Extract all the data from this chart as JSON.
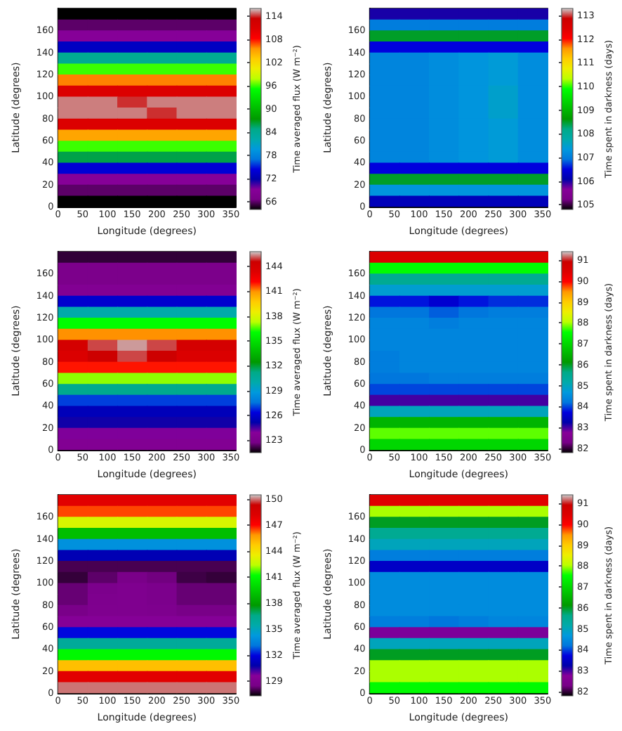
{
  "chart_data": [
    {
      "type": "heatmap",
      "xlabel": "Longitude (degrees)",
      "ylabel": "Latitude (degrees)",
      "clabel": "Time averaged flux (W m⁻²)",
      "x": [
        30,
        90,
        150,
        210,
        270,
        330
      ],
      "xlim": [
        0,
        360
      ],
      "xticks": [
        0,
        50,
        100,
        150,
        200,
        250,
        300,
        350
      ],
      "ylim": [
        0,
        180
      ],
      "yticks": [
        0,
        20,
        40,
        60,
        80,
        100,
        120,
        140,
        160
      ],
      "clim": [
        64,
        116
      ],
      "cticks": [
        66,
        72,
        78,
        84,
        90,
        96,
        102,
        108,
        114
      ],
      "cells": [
        [
          64,
          64,
          64,
          64,
          64,
          64
        ],
        [
          66,
          66,
          66,
          66,
          66,
          66
        ],
        [
          69,
          69,
          69,
          69,
          69,
          69
        ],
        [
          73,
          73,
          73,
          73,
          73,
          73
        ],
        [
          84,
          84,
          84,
          84,
          84,
          84
        ],
        [
          96,
          96,
          96,
          96,
          96,
          96
        ],
        [
          106,
          106,
          106,
          106,
          106,
          106
        ],
        [
          111,
          111,
          111,
          111,
          111,
          111
        ],
        [
          115,
          115,
          114,
          115,
          115,
          115
        ],
        [
          115,
          115,
          115,
          114,
          115,
          115
        ],
        [
          111,
          111,
          111,
          111,
          111,
          111
        ],
        [
          105,
          105,
          105,
          105,
          105,
          105
        ],
        [
          96,
          96,
          96,
          96,
          96,
          96
        ],
        [
          86,
          86,
          86,
          86,
          86,
          86
        ],
        [
          74,
          74,
          74,
          74,
          74,
          74
        ],
        [
          69,
          69,
          69,
          69,
          69,
          69
        ],
        [
          66,
          66,
          66,
          66,
          66,
          66
        ],
        [
          64,
          64,
          64,
          64,
          64,
          64
        ]
      ]
    },
    {
      "type": "heatmap",
      "xlabel": "Longitude (degrees)",
      "ylabel": "Latitude (degrees)",
      "clabel": "Time spent in darkness (days)",
      "x": [
        30,
        90,
        150,
        210,
        270,
        330
      ],
      "xlim": [
        0,
        360
      ],
      "xticks": [
        0,
        50,
        100,
        150,
        200,
        250,
        300,
        350
      ],
      "ylim": [
        0,
        180
      ],
      "yticks": [
        0,
        20,
        40,
        60,
        80,
        100,
        120,
        140,
        160
      ],
      "clim": [
        104.8,
        113.3
      ],
      "cticks": [
        105,
        106,
        107,
        108,
        109,
        110,
        111,
        112,
        113
      ],
      "cells": [
        [
          106,
          106,
          106,
          106,
          106,
          106
        ],
        [
          107,
          107,
          107,
          107,
          107,
          107
        ],
        [
          108.5,
          108.5,
          108.5,
          108.5,
          108.5,
          108.5
        ],
        [
          106.5,
          106.5,
          106.5,
          106.5,
          106.5,
          106.5
        ],
        [
          107.1,
          107.1,
          107.2,
          107.3,
          107.4,
          107.2
        ],
        [
          107.1,
          107.1,
          107.2,
          107.3,
          107.4,
          107.2
        ],
        [
          107.1,
          107.1,
          107.2,
          107.3,
          107.4,
          107.2
        ],
        [
          107.1,
          107.1,
          107.2,
          107.3,
          107.5,
          107.2
        ],
        [
          107.1,
          107.1,
          107.2,
          107.3,
          107.5,
          107.2
        ],
        [
          107.1,
          107.1,
          107.2,
          107.3,
          107.5,
          107.2
        ],
        [
          107.1,
          107.1,
          107.2,
          107.3,
          107.4,
          107.2
        ],
        [
          107.1,
          107.1,
          107.2,
          107.3,
          107.4,
          107.2
        ],
        [
          107.1,
          107.1,
          107.2,
          107.3,
          107.4,
          107.2
        ],
        [
          107.1,
          107.1,
          107.2,
          107.3,
          107.4,
          107.2
        ],
        [
          106.5,
          106.5,
          106.5,
          106.5,
          106.5,
          106.5
        ],
        [
          108.5,
          108.5,
          108.5,
          108.5,
          108.5,
          108.5
        ],
        [
          107.3,
          107.3,
          107.3,
          107.3,
          107.3,
          107.3
        ],
        [
          106.2,
          106.2,
          106.2,
          106.2,
          106.2,
          106.2
        ]
      ]
    },
    {
      "type": "heatmap",
      "xlabel": "Longitude (degrees)",
      "ylabel": "Latitude (degrees)",
      "clabel": "Time averaged flux (W m⁻²)",
      "x": [
        30,
        90,
        150,
        210,
        270,
        330
      ],
      "xlim": [
        0,
        360
      ],
      "xticks": [
        0,
        50,
        100,
        150,
        200,
        250,
        300,
        350
      ],
      "ylim": [
        0,
        180
      ],
      "yticks": [
        0,
        20,
        40,
        60,
        80,
        100,
        120,
        140,
        160
      ],
      "clim": [
        121.5,
        145.8
      ],
      "cticks": [
        123,
        126,
        129,
        132,
        135,
        138,
        141,
        144
      ],
      "cells": [
        [
          122,
          122,
          122,
          122,
          122,
          122
        ],
        [
          123,
          123,
          123,
          123,
          123,
          123
        ],
        [
          123,
          123,
          123,
          123,
          123,
          123
        ],
        [
          123.5,
          123.5,
          123.5,
          123.5,
          123.5,
          123.5
        ],
        [
          126,
          126,
          126,
          126,
          126,
          126
        ],
        [
          130,
          130,
          130,
          130,
          130,
          130
        ],
        [
          136,
          136,
          136,
          136,
          136,
          136
        ],
        [
          141,
          141,
          141,
          141,
          141,
          141
        ],
        [
          144,
          145,
          145.5,
          145,
          144,
          144
        ],
        [
          143.5,
          144.5,
          145,
          144.5,
          143.5,
          143.5
        ],
        [
          142,
          142,
          142,
          142,
          142,
          142
        ],
        [
          137,
          137,
          137,
          137,
          137,
          137
        ],
        [
          131,
          131,
          131,
          131,
          131,
          131
        ],
        [
          127,
          127,
          127,
          127,
          127,
          127
        ],
        [
          125.5,
          125.5,
          125.5,
          125.5,
          125.5,
          125.5
        ],
        [
          125,
          125,
          125,
          125,
          125,
          125
        ],
        [
          124,
          124,
          124,
          124,
          124,
          124
        ],
        [
          123.5,
          123.5,
          123.5,
          123.5,
          123.5,
          123.5
        ]
      ]
    },
    {
      "type": "heatmap",
      "xlabel": "Longitude (degrees)",
      "ylabel": "Latitude (degrees)",
      "clabel": "Time spent in darkness (days)",
      "x": [
        30,
        90,
        150,
        210,
        270,
        330
      ],
      "xlim": [
        0,
        360
      ],
      "xticks": [
        0,
        50,
        100,
        150,
        200,
        250,
        300,
        350
      ],
      "ylim": [
        0,
        180
      ],
      "yticks": [
        0,
        20,
        40,
        60,
        80,
        100,
        120,
        140,
        160
      ],
      "clim": [
        81.8,
        91.4
      ],
      "cticks": [
        82,
        83,
        84,
        85,
        86,
        87,
        88,
        89,
        90,
        91
      ],
      "cells": [
        [
          90.5,
          90.5,
          90.5,
          90.5,
          90.5,
          90.5
        ],
        [
          87.5,
          87.5,
          87.5,
          87.5,
          87.5,
          87.5
        ],
        [
          85.5,
          85.5,
          85.5,
          85.5,
          85.5,
          85.5
        ],
        [
          84.8,
          84.8,
          84.8,
          84.8,
          84.8,
          84.8
        ],
        [
          83.8,
          83.8,
          83.6,
          83.8,
          83.9,
          83.9
        ],
        [
          84.2,
          84.2,
          84.1,
          84.2,
          84.3,
          84.3
        ],
        [
          84.4,
          84.4,
          84.3,
          84.4,
          84.4,
          84.4
        ],
        [
          84.4,
          84.4,
          84.4,
          84.4,
          84.4,
          84.4
        ],
        [
          84.4,
          84.4,
          84.4,
          84.4,
          84.4,
          84.4
        ],
        [
          84.3,
          84.4,
          84.4,
          84.4,
          84.4,
          84.4
        ],
        [
          84.3,
          84.4,
          84.4,
          84.4,
          84.4,
          84.4
        ],
        [
          84.2,
          84.2,
          84.3,
          84.3,
          84.3,
          84.3
        ],
        [
          84,
          84,
          84,
          84,
          84,
          84
        ],
        [
          83,
          83,
          83,
          83,
          83,
          83
        ],
        [
          85,
          85,
          85,
          85,
          85,
          85
        ],
        [
          86.5,
          86.5,
          86.5,
          86.5,
          86.5,
          86.5
        ],
        [
          87.8,
          87.8,
          87.8,
          87.8,
          87.8,
          87.8
        ],
        [
          87,
          87,
          87,
          87,
          87,
          87
        ]
      ]
    },
    {
      "type": "heatmap",
      "xlabel": "Longitude (degrees)",
      "ylabel": "Latitude (degrees)",
      "clabel": "Time averaged flux (W m⁻²)",
      "x": [
        30,
        90,
        150,
        210,
        270,
        330
      ],
      "xlim": [
        0,
        360
      ],
      "xticks": [
        0,
        50,
        100,
        150,
        200,
        250,
        300,
        350
      ],
      "ylim": [
        0,
        180
      ],
      "yticks": [
        0,
        20,
        40,
        60,
        80,
        100,
        120,
        140,
        160
      ],
      "clim": [
        127.3,
        150.5
      ],
      "cticks": [
        129,
        132,
        135,
        138,
        141,
        144,
        147,
        150
      ],
      "cells": [
        [
          148,
          148,
          148,
          148,
          148,
          148
        ],
        [
          146.5,
          146.5,
          146.5,
          146.5,
          146.5,
          146.5
        ],
        [
          143,
          143,
          143,
          143,
          143,
          143
        ],
        [
          139,
          139,
          139,
          139,
          139,
          139
        ],
        [
          134,
          134,
          134,
          134,
          134,
          134
        ],
        [
          131,
          131,
          131,
          131,
          131,
          131
        ],
        [
          128,
          128,
          128,
          128,
          128,
          128
        ],
        [
          127.8,
          128.2,
          128.6,
          128.4,
          127.9,
          127.8
        ],
        [
          128.3,
          128.8,
          129,
          128.8,
          128.3,
          128.3
        ],
        [
          128.3,
          128.9,
          129,
          128.8,
          128.3,
          128.3
        ],
        [
          128.6,
          129,
          129,
          128.9,
          128.5,
          128.5
        ],
        [
          129.5,
          129.5,
          129.5,
          129.5,
          129.5,
          129.5
        ],
        [
          132,
          132,
          132,
          132,
          132,
          132
        ],
        [
          136,
          136,
          136,
          136,
          136,
          136
        ],
        [
          141,
          141,
          141,
          141,
          141,
          141
        ],
        [
          145,
          145,
          145,
          145,
          145,
          145
        ],
        [
          148,
          148,
          148,
          148,
          148,
          148
        ],
        [
          150,
          150,
          150,
          150,
          150,
          150
        ]
      ]
    },
    {
      "type": "heatmap",
      "xlabel": "Longitude (degrees)",
      "ylabel": "Latitude (degrees)",
      "clabel": "Time spent in darkness (days)",
      "x": [
        30,
        90,
        150,
        210,
        270,
        330
      ],
      "xlim": [
        0,
        360
      ],
      "xticks": [
        0,
        50,
        100,
        150,
        200,
        250,
        300,
        350
      ],
      "ylim": [
        0,
        180
      ],
      "yticks": [
        0,
        20,
        40,
        60,
        80,
        100,
        120,
        140,
        160
      ],
      "clim": [
        81.8,
        91.4
      ],
      "cticks": [
        82,
        83,
        84,
        85,
        86,
        87,
        88,
        89,
        90,
        91
      ],
      "cells": [
        [
          90.4,
          90.4,
          90.4,
          90.4,
          90.4,
          90.4
        ],
        [
          88,
          88,
          88,
          88,
          88,
          88
        ],
        [
          86,
          86,
          86,
          86,
          86,
          86
        ],
        [
          85.5,
          85.5,
          85.5,
          85.5,
          85.5,
          85.5
        ],
        [
          85,
          85,
          85,
          85,
          85,
          85
        ],
        [
          84.3,
          84.3,
          84.3,
          84.3,
          84.3,
          84.3
        ],
        [
          83.5,
          83.5,
          83.5,
          83.5,
          83.5,
          83.5
        ],
        [
          84.5,
          84.5,
          84.5,
          84.5,
          84.5,
          84.5
        ],
        [
          84.5,
          84.5,
          84.5,
          84.5,
          84.5,
          84.5
        ],
        [
          84.5,
          84.5,
          84.5,
          84.5,
          84.5,
          84.5
        ],
        [
          84.5,
          84.5,
          84.5,
          84.5,
          84.5,
          84.5
        ],
        [
          84.3,
          84.3,
          84.2,
          84.3,
          84.4,
          84.4
        ],
        [
          82.8,
          82.8,
          82.8,
          82.8,
          82.8,
          82.8
        ],
        [
          85,
          85,
          85,
          85,
          85,
          85
        ],
        [
          86,
          86,
          86,
          86,
          86,
          86
        ],
        [
          88,
          88,
          88,
          88,
          88,
          88
        ],
        [
          88,
          88,
          88,
          88,
          88,
          88
        ],
        [
          87.5,
          87.5,
          87.5,
          87.5,
          87.5,
          87.5
        ]
      ]
    }
  ]
}
